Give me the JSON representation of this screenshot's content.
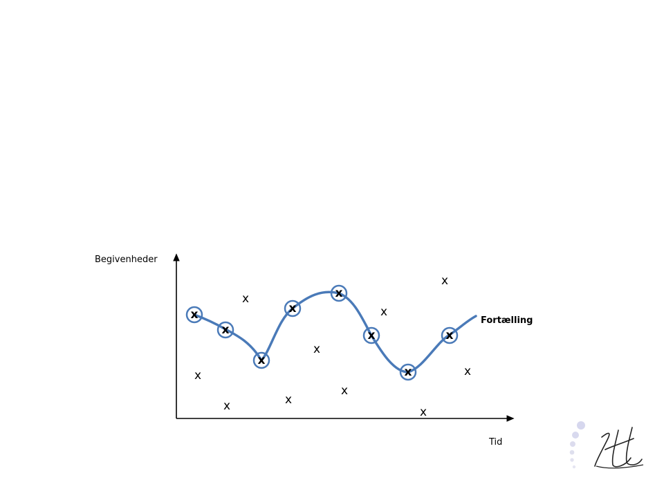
{
  "diagram": {
    "y_axis_label": "Begivenheder",
    "x_axis_label": "Tid",
    "series_label": "Fortælling",
    "marker_symbol": "x",
    "colors": {
      "curve": "#4a7ab8",
      "axis": "#000000",
      "text": "#000000"
    }
  },
  "logo": {
    "text": "Ht",
    "icon": "signature-logo"
  }
}
